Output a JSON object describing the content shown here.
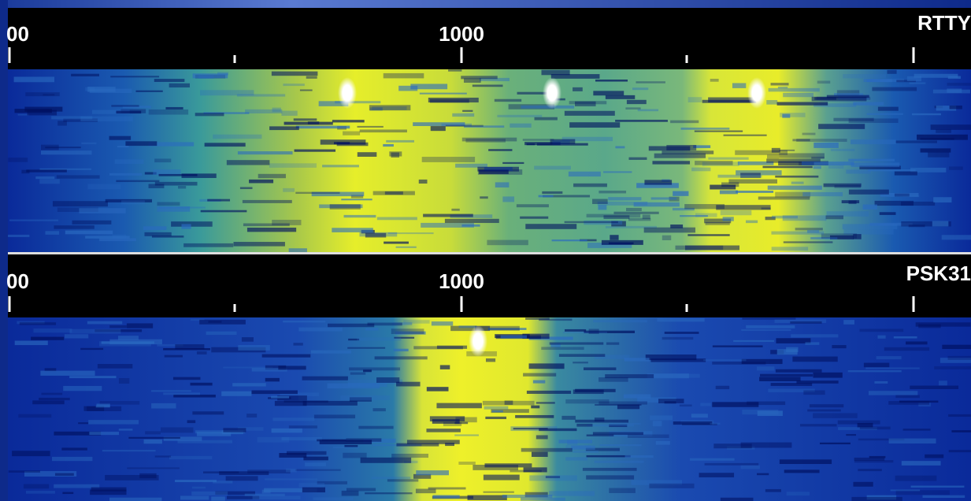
{
  "panels": [
    {
      "scale_labels": [
        "00",
        "1000"
      ],
      "mode": "RTTY"
    },
    {
      "scale_labels": [
        "00",
        "1000"
      ],
      "mode": "PSK31"
    }
  ]
}
